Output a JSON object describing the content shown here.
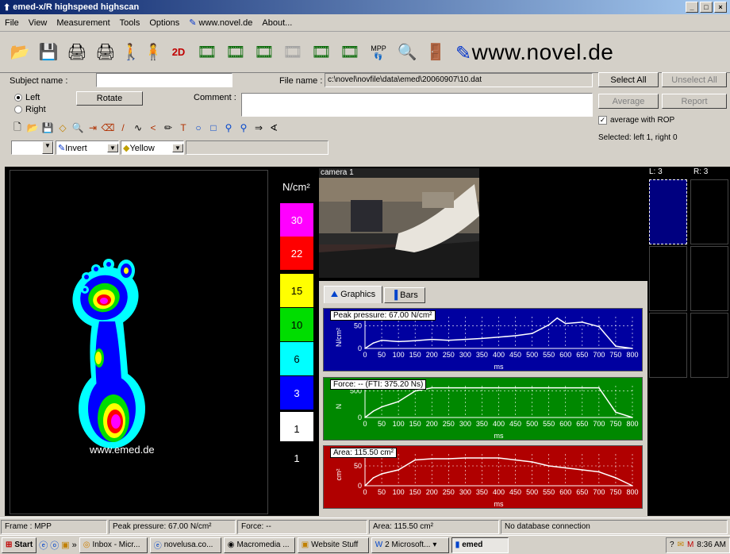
{
  "window": {
    "title": "emed-x/R highspeed highscan"
  },
  "menu": [
    "File",
    "View",
    "Measurement",
    "Tools",
    "Options",
    "www.novel.de",
    "About..."
  ],
  "toolbar": {
    "brand": "www.novel.de",
    "mpp_label": "MPP",
    "two_d_label": "2D"
  },
  "form": {
    "subject_label": "Subject name :",
    "subject_value": "",
    "file_label": "File name :",
    "file_value": "c:\\novel\\novfile\\data\\emed\\20060907\\10.dat",
    "left_label": "Left",
    "right_label": "Right",
    "rotate_label": "Rotate",
    "comment_label": "Comment :",
    "comment_value": ""
  },
  "side_buttons": {
    "select_all": "Select All",
    "unselect_all": "Unselect All",
    "average": "Average",
    "report": "Report",
    "average_rop": "average with ROP",
    "selected": "Selected: left 1, right 0"
  },
  "format_bar": {
    "invert": "Invert",
    "color": "Yellow"
  },
  "footprint": {
    "watermark": "www.emed.de"
  },
  "scale": {
    "unit": "N/cm²",
    "levels": [
      {
        "value": "30",
        "color": "#ff00ff"
      },
      {
        "value": "22",
        "color": "#ff0000"
      },
      {
        "value": "15",
        "color": "#ffff00"
      },
      {
        "value": "10",
        "color": "#00dd00"
      },
      {
        "value": "6",
        "color": "#00ffff"
      },
      {
        "value": "3",
        "color": "#0000ff"
      },
      {
        "value": "1",
        "color": "#ffffff"
      },
      {
        "value": "1",
        "color": "#000000"
      }
    ]
  },
  "camera": {
    "label": "camera 1"
  },
  "tabs": [
    "Graphics",
    "Bars"
  ],
  "thumbs": {
    "left": "L: 3",
    "right": "R: 3"
  },
  "chart_data": [
    {
      "type": "line",
      "title": "Peak pressure: 67.00 N/cm²",
      "xlabel": "ms",
      "ylabel": "N/cm²",
      "ylim": [
        0,
        70
      ],
      "yticks": [
        0,
        50
      ],
      "bg": "#0000a0",
      "x": [
        0,
        25,
        50,
        100,
        150,
        200,
        250,
        300,
        350,
        400,
        450,
        500,
        550,
        575,
        600,
        650,
        700,
        750,
        800
      ],
      "values": [
        0,
        12,
        18,
        15,
        17,
        20,
        18,
        20,
        22,
        25,
        28,
        33,
        52,
        67,
        55,
        58,
        48,
        5,
        0
      ]
    },
    {
      "type": "line",
      "title": "Force: -- (FTI: 375.20 Ns)",
      "xlabel": "ms",
      "ylabel": "N",
      "ylim": [
        0,
        600
      ],
      "yticks": [
        0,
        500
      ],
      "bg": "#008800",
      "x": [
        0,
        25,
        50,
        100,
        150,
        200,
        250,
        300,
        350,
        400,
        450,
        500,
        550,
        600,
        650,
        700,
        750,
        800
      ],
      "values": [
        0,
        120,
        200,
        300,
        500,
        560,
        560,
        560,
        560,
        560,
        560,
        560,
        560,
        560,
        560,
        560,
        100,
        0
      ]
    },
    {
      "type": "line",
      "title": "Area: 115.50 cm²",
      "xlabel": "ms",
      "ylabel": "cm²",
      "ylim": [
        0,
        80
      ],
      "yticks": [
        0,
        50
      ],
      "bg": "#b00000",
      "x": [
        0,
        25,
        50,
        100,
        150,
        200,
        250,
        300,
        350,
        400,
        450,
        500,
        550,
        600,
        650,
        700,
        750,
        800
      ],
      "values": [
        0,
        20,
        30,
        40,
        65,
        68,
        68,
        70,
        70,
        70,
        65,
        60,
        50,
        45,
        40,
        35,
        20,
        0
      ]
    }
  ],
  "x_ticks": [
    "0",
    "50",
    "100",
    "150",
    "200",
    "250",
    "300",
    "350",
    "400",
    "450",
    "500",
    "550",
    "600",
    "650",
    "700",
    "750",
    "800"
  ],
  "status": {
    "frame": "Frame : MPP",
    "peak": "Peak pressure: 67.00 N/cm²",
    "force": "Force: --",
    "area": "Area: 115.50 cm²",
    "db": "No database connection"
  },
  "taskbar": {
    "start": "Start",
    "items": [
      "Inbox - Micr...",
      "novelusa.co...",
      "Macromedia ...",
      "Website Stuff",
      "2 Microsoft...",
      "emed"
    ],
    "time": "8:36 AM"
  },
  "colors": {
    "face": "#d4d0c8",
    "title": "#0a246a"
  }
}
